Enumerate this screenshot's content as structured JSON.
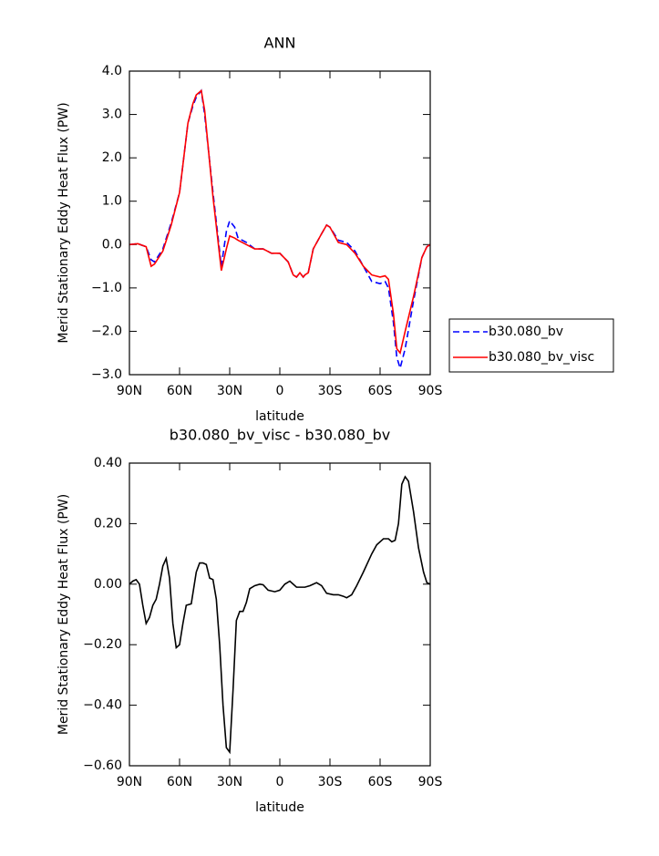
{
  "chart_data": [
    {
      "type": "line",
      "title": "ANN",
      "xlabel": "latitude",
      "ylabel": "Merid Stationary Eddy Heat Flux (PW)",
      "xlim": [
        90,
        -90
      ],
      "xticks": [
        {
          "value": 90,
          "label": "90N"
        },
        {
          "value": 60,
          "label": "60N"
        },
        {
          "value": 30,
          "label": "30N"
        },
        0,
        {
          "value": -30,
          "label": "30S"
        },
        {
          "value": -60,
          "label": "60S"
        },
        {
          "value": -90,
          "label": "90S"
        }
      ],
      "ylim": [
        -3,
        4
      ],
      "yticks": [
        {
          "value": 4,
          "label": "4.0"
        },
        {
          "value": 3,
          "label": "3.0"
        },
        {
          "value": 2,
          "label": "2.0"
        },
        {
          "value": 1,
          "label": "1.0"
        },
        {
          "value": 0,
          "label": "0.0"
        },
        {
          "value": -1,
          "label": "−1.0"
        },
        {
          "value": -2,
          "label": "−2.0"
        },
        {
          "value": -3,
          "label": "−3.0"
        }
      ],
      "legend": "right",
      "x": [
        90,
        85,
        80,
        77,
        75,
        70,
        65,
        60,
        55,
        52,
        50,
        47,
        45,
        40,
        35,
        32,
        30,
        27,
        25,
        20,
        15,
        10,
        5,
        0,
        -5,
        -8,
        -10,
        -12,
        -14,
        -15,
        -17,
        -20,
        -25,
        -28,
        -30,
        -35,
        -40,
        -45,
        -50,
        -55,
        -60,
        -63,
        -65,
        -68,
        -70,
        -72,
        -75,
        -80,
        -85,
        -88,
        -90
      ],
      "series": [
        {
          "name": "b30.080_bv",
          "color": "#0000ff",
          "dashed": true,
          "values": [
            0,
            0.02,
            -0.05,
            -0.35,
            -0.4,
            -0.1,
            0.5,
            1.2,
            2.8,
            3.2,
            3.4,
            3.55,
            3.0,
            1.2,
            -0.5,
            0.3,
            0.55,
            0.4,
            0.15,
            0.05,
            -0.1,
            -0.1,
            -0.2,
            -0.2,
            -0.4,
            -0.7,
            -0.75,
            -0.65,
            -0.75,
            -0.7,
            -0.65,
            -0.1,
            0.25,
            0.45,
            0.4,
            0.1,
            0.05,
            -0.15,
            -0.5,
            -0.85,
            -0.9,
            -0.85,
            -1.0,
            -1.8,
            -2.6,
            -2.85,
            -2.4,
            -1.3,
            -0.3,
            -0.05,
            0
          ]
        },
        {
          "name": "b30.080_bv_visc",
          "color": "#ff0000",
          "dashed": false,
          "values": [
            0,
            0.02,
            -0.05,
            -0.5,
            -0.45,
            -0.15,
            0.45,
            1.2,
            2.8,
            3.25,
            3.45,
            3.55,
            3.1,
            1.1,
            -0.6,
            -0.1,
            0.2,
            0.15,
            0.1,
            0.0,
            -0.1,
            -0.1,
            -0.2,
            -0.2,
            -0.4,
            -0.7,
            -0.75,
            -0.65,
            -0.75,
            -0.7,
            -0.65,
            -0.1,
            0.25,
            0.45,
            0.4,
            0.05,
            0.0,
            -0.2,
            -0.5,
            -0.7,
            -0.75,
            -0.72,
            -0.8,
            -1.6,
            -2.4,
            -2.5,
            -2.0,
            -1.2,
            -0.3,
            -0.05,
            0
          ]
        }
      ]
    },
    {
      "type": "line",
      "title": "b30.080_bv_visc - b30.080_bv",
      "xlabel": "latitude",
      "ylabel": "Merid Stationary Eddy Heat Flux (PW)",
      "xlim": [
        90,
        -90
      ],
      "xticks": [
        {
          "value": 90,
          "label": "90N"
        },
        {
          "value": 60,
          "label": "60N"
        },
        {
          "value": 30,
          "label": "30N"
        },
        0,
        {
          "value": -30,
          "label": "30S"
        },
        {
          "value": -60,
          "label": "60S"
        },
        {
          "value": -90,
          "label": "90S"
        }
      ],
      "ylim": [
        -0.6,
        0.4
      ],
      "yticks": [
        {
          "value": 0.4,
          "label": "0.40"
        },
        {
          "value": 0.2,
          "label": "0.20"
        },
        {
          "value": 0,
          "label": "0.00"
        },
        {
          "value": -0.2,
          "label": "−0.20"
        },
        {
          "value": -0.4,
          "label": "−0.40"
        },
        {
          "value": -0.6,
          "label": "−0.60"
        }
      ],
      "color": "#000000",
      "x": [
        90,
        88,
        86,
        84,
        82,
        80,
        78,
        76,
        74,
        72,
        70,
        68,
        66,
        64,
        62,
        60,
        58,
        56,
        53,
        50,
        48,
        46,
        44,
        42,
        40,
        38,
        36,
        34,
        32,
        30,
        28,
        26,
        24,
        22,
        20,
        18,
        15,
        12,
        10,
        7,
        3,
        0,
        -3,
        -6,
        -10,
        -15,
        -18,
        -22,
        -25,
        -28,
        -32,
        -35,
        -38,
        -40,
        -43,
        -46,
        -50,
        -55,
        -58,
        -62,
        -65,
        -67,
        -69,
        -71,
        -73,
        -75,
        -77,
        -80,
        -83,
        -86,
        -88,
        -90
      ],
      "values": [
        0,
        0.01,
        0.015,
        0,
        -0.07,
        -0.13,
        -0.11,
        -0.07,
        -0.05,
        0,
        0.06,
        0.085,
        0.02,
        -0.13,
        -0.21,
        -0.2,
        -0.13,
        -0.07,
        -0.065,
        0.04,
        0.07,
        0.07,
        0.065,
        0.02,
        0.015,
        -0.05,
        -0.2,
        -0.4,
        -0.54,
        -0.555,
        -0.35,
        -0.12,
        -0.09,
        -0.09,
        -0.06,
        -0.015,
        -0.005,
        0,
        -0.002,
        -0.02,
        -0.025,
        -0.02,
        0,
        0.01,
        -0.01,
        -0.01,
        -0.005,
        0.005,
        -0.005,
        -0.03,
        -0.035,
        -0.035,
        -0.04,
        -0.045,
        -0.035,
        -0.005,
        0.04,
        0.1,
        0.13,
        0.15,
        0.15,
        0.14,
        0.145,
        0.2,
        0.33,
        0.355,
        0.34,
        0.24,
        0.12,
        0.04,
        0.005,
        0
      ]
    }
  ]
}
